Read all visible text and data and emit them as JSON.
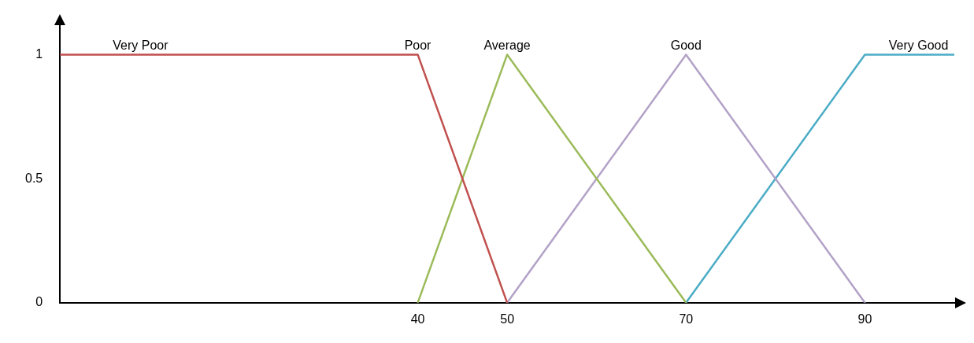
{
  "chart_data": {
    "type": "line",
    "xlim": [
      0,
      100
    ],
    "xticks": [
      40,
      50,
      70,
      90
    ],
    "ylim": [
      0,
      1.12
    ],
    "yticks": [
      0,
      0.5,
      1
    ],
    "grid": false,
    "legend": false,
    "marker": "none",
    "line_style": "solid",
    "series": [
      {
        "color": "#c0504d",
        "x": [
          0,
          40,
          50
        ],
        "values": [
          1,
          1,
          0
        ]
      },
      {
        "color": "#9bbb59",
        "x": [
          40,
          50,
          70
        ],
        "values": [
          0,
          1,
          0
        ]
      },
      {
        "color": "#b3a2c7",
        "x": [
          50,
          70,
          90
        ],
        "values": [
          0,
          1,
          0
        ]
      },
      {
        "color": "#4bacc6",
        "x": [
          70,
          90,
          100
        ],
        "values": [
          0,
          1,
          1
        ]
      }
    ],
    "annotations": [
      {
        "text": "Very Poor",
        "x": 9,
        "y": 1
      },
      {
        "text": "Poor",
        "x": 40,
        "y": 1
      },
      {
        "text": "Average",
        "x": 50,
        "y": 1
      },
      {
        "text": "Good",
        "x": 70,
        "y": 1
      },
      {
        "text": "Very Good",
        "x": 96,
        "y": 1
      }
    ]
  }
}
